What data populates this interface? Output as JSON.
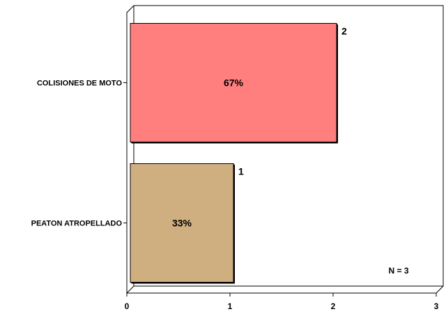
{
  "chart_data": {
    "type": "bar",
    "orientation": "horizontal",
    "categories": [
      "COLISIONES DE MOTO",
      "PEATON ATROPELLADO"
    ],
    "values": [
      2,
      1
    ],
    "percent_labels": [
      "67%",
      "33%"
    ],
    "bar_colors": [
      "#ff7f7f",
      "#cfae80"
    ],
    "xlim": [
      0,
      3
    ],
    "x_ticks": [
      "0",
      "1",
      "2",
      "3"
    ],
    "grid": false,
    "title": "",
    "xlabel": "",
    "ylabel": "",
    "annotation": "N = 3"
  }
}
